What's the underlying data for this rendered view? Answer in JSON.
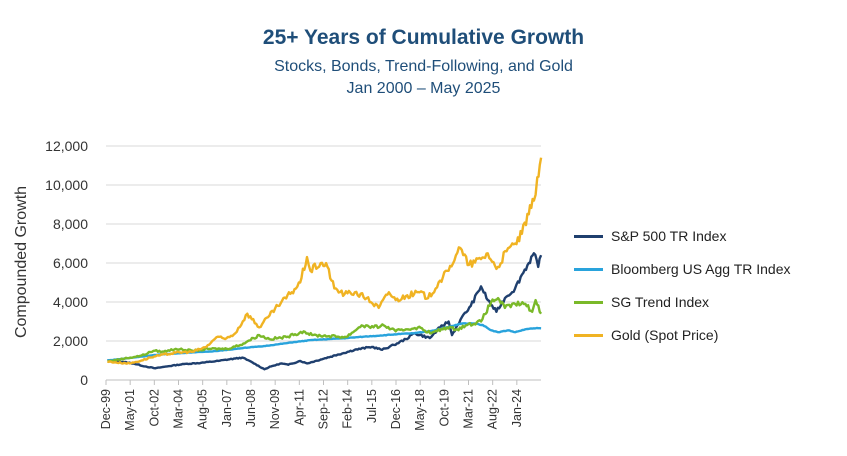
{
  "chart_data": {
    "type": "line",
    "title": "25+ Years of Cumulative Growth",
    "subtitle": "Stocks, Bonds, Trend-Following, and Gold",
    "subtitle2": "Jan 2000 – May 2025",
    "ylabel": "Compounded Growth",
    "xlabel": "",
    "ylim": [
      0,
      12000
    ],
    "yticks": [
      "0",
      "2,000",
      "4,000",
      "6,000",
      "8,000",
      "10,000",
      "12,000"
    ],
    "xlim": [
      1999.917,
      2025.417
    ],
    "xtick_labels": [
      "Dec-99",
      "May-01",
      "Oct-02",
      "Mar-04",
      "Aug-05",
      "Jan-07",
      "Jun-08",
      "Nov-09",
      "Apr-11",
      "Sep-12",
      "Feb-14",
      "Jul-15",
      "Dec-16",
      "May-18",
      "Oct-19",
      "Mar-21",
      "Aug-22",
      "Jan-24"
    ],
    "grid": "horizontal",
    "legend_position": "right",
    "series": [
      {
        "name": "S&P 500 TR Index",
        "color": "#1f3f6e",
        "points": [
          [
            2000.0,
            1000
          ],
          [
            2000.7,
            950
          ],
          [
            2001.5,
            850
          ],
          [
            2002.2,
            700
          ],
          [
            2002.8,
            600
          ],
          [
            2003.5,
            700
          ],
          [
            2004.5,
            820
          ],
          [
            2005.5,
            880
          ],
          [
            2006.5,
            980
          ],
          [
            2007.5,
            1100
          ],
          [
            2007.9,
            1150
          ],
          [
            2008.5,
            900
          ],
          [
            2009.2,
            550
          ],
          [
            2009.6,
            700
          ],
          [
            2010.2,
            850
          ],
          [
            2010.6,
            780
          ],
          [
            2011.3,
            980
          ],
          [
            2011.7,
            850
          ],
          [
            2012.5,
            1050
          ],
          [
            2013.5,
            1300
          ],
          [
            2014.5,
            1550
          ],
          [
            2015.5,
            1700
          ],
          [
            2016.1,
            1550
          ],
          [
            2016.8,
            1800
          ],
          [
            2017.5,
            2100
          ],
          [
            2018.0,
            2400
          ],
          [
            2018.9,
            2150
          ],
          [
            2019.5,
            2700
          ],
          [
            2020.0,
            3000
          ],
          [
            2020.2,
            2300
          ],
          [
            2020.7,
            3100
          ],
          [
            2021.3,
            3800
          ],
          [
            2021.9,
            4800
          ],
          [
            2022.3,
            4100
          ],
          [
            2022.8,
            3500
          ],
          [
            2023.3,
            4200
          ],
          [
            2023.9,
            4700
          ],
          [
            2024.3,
            5400
          ],
          [
            2024.7,
            6000
          ],
          [
            2025.0,
            6500
          ],
          [
            2025.25,
            5800
          ],
          [
            2025.42,
            6400
          ]
        ]
      },
      {
        "name": "Bloomberg US Agg TR Index",
        "color": "#29a3dc",
        "points": [
          [
            2000.0,
            1000
          ],
          [
            2001.0,
            1100
          ],
          [
            2002.0,
            1200
          ],
          [
            2003.0,
            1300
          ],
          [
            2004.0,
            1360
          ],
          [
            2005.0,
            1420
          ],
          [
            2006.0,
            1460
          ],
          [
            2007.0,
            1540
          ],
          [
            2008.0,
            1650
          ],
          [
            2009.0,
            1720
          ],
          [
            2010.0,
            1830
          ],
          [
            2011.0,
            1950
          ],
          [
            2012.0,
            2050
          ],
          [
            2013.0,
            2100
          ],
          [
            2014.0,
            2150
          ],
          [
            2015.0,
            2220
          ],
          [
            2016.0,
            2280
          ],
          [
            2017.0,
            2350
          ],
          [
            2018.0,
            2400
          ],
          [
            2019.0,
            2520
          ],
          [
            2020.0,
            2720
          ],
          [
            2020.8,
            2900
          ],
          [
            2021.5,
            2900
          ],
          [
            2022.0,
            2820
          ],
          [
            2022.5,
            2550
          ],
          [
            2022.9,
            2450
          ],
          [
            2023.5,
            2550
          ],
          [
            2023.9,
            2450
          ],
          [
            2024.5,
            2600
          ],
          [
            2025.0,
            2650
          ],
          [
            2025.42,
            2650
          ]
        ]
      },
      {
        "name": "SG Trend Index",
        "color": "#7ab929",
        "points": [
          [
            2000.0,
            950
          ],
          [
            2001.0,
            1100
          ],
          [
            2002.0,
            1250
          ],
          [
            2002.7,
            1500
          ],
          [
            2003.3,
            1450
          ],
          [
            2004.0,
            1600
          ],
          [
            2005.0,
            1500
          ],
          [
            2006.0,
            1600
          ],
          [
            2007.0,
            1600
          ],
          [
            2007.8,
            1800
          ],
          [
            2008.9,
            2300
          ],
          [
            2009.5,
            2100
          ],
          [
            2010.5,
            2200
          ],
          [
            2011.0,
            2350
          ],
          [
            2011.5,
            2500
          ],
          [
            2012.0,
            2300
          ],
          [
            2013.0,
            2250
          ],
          [
            2014.0,
            2200
          ],
          [
            2014.9,
            2800
          ],
          [
            2015.6,
            2700
          ],
          [
            2016.2,
            2800
          ],
          [
            2016.9,
            2500
          ],
          [
            2017.5,
            2600
          ],
          [
            2018.2,
            2700
          ],
          [
            2019.0,
            2400
          ],
          [
            2019.9,
            2700
          ],
          [
            2020.5,
            2600
          ],
          [
            2021.0,
            2800
          ],
          [
            2021.9,
            3000
          ],
          [
            2022.5,
            4000
          ],
          [
            2022.9,
            4200
          ],
          [
            2023.3,
            3700
          ],
          [
            2023.9,
            3900
          ],
          [
            2024.5,
            3900
          ],
          [
            2024.9,
            3500
          ],
          [
            2025.1,
            4100
          ],
          [
            2025.42,
            3400
          ]
        ]
      },
      {
        "name": "Gold (Spot Price)",
        "color": "#f0b323",
        "points": [
          [
            2000.0,
            950
          ],
          [
            2000.5,
            900
          ],
          [
            2001.3,
            850
          ],
          [
            2002.0,
            1000
          ],
          [
            2002.5,
            1150
          ],
          [
            2003.0,
            1250
          ],
          [
            2004.0,
            1400
          ],
          [
            2005.0,
            1450
          ],
          [
            2005.8,
            1700
          ],
          [
            2006.4,
            2200
          ],
          [
            2006.9,
            2100
          ],
          [
            2007.5,
            2400
          ],
          [
            2008.2,
            3400
          ],
          [
            2008.9,
            2700
          ],
          [
            2009.5,
            3300
          ],
          [
            2010.0,
            3800
          ],
          [
            2010.8,
            4500
          ],
          [
            2011.3,
            5000
          ],
          [
            2011.7,
            6300
          ],
          [
            2011.9,
            5600
          ],
          [
            2012.5,
            6000
          ],
          [
            2012.9,
            5800
          ],
          [
            2013.3,
            4700
          ],
          [
            2013.9,
            4400
          ],
          [
            2014.5,
            4500
          ],
          [
            2015.2,
            4200
          ],
          [
            2015.9,
            3700
          ],
          [
            2016.5,
            4500
          ],
          [
            2016.9,
            4100
          ],
          [
            2017.5,
            4300
          ],
          [
            2018.3,
            4500
          ],
          [
            2018.8,
            4200
          ],
          [
            2019.5,
            5100
          ],
          [
            2020.0,
            5600
          ],
          [
            2020.6,
            6800
          ],
          [
            2021.2,
            5900
          ],
          [
            2021.9,
            6200
          ],
          [
            2022.3,
            6500
          ],
          [
            2022.8,
            5700
          ],
          [
            2023.4,
            6600
          ],
          [
            2023.9,
            7000
          ],
          [
            2024.3,
            7500
          ],
          [
            2024.7,
            8500
          ],
          [
            2025.0,
            9200
          ],
          [
            2025.2,
            10400
          ],
          [
            2025.42,
            11400
          ]
        ]
      }
    ]
  }
}
